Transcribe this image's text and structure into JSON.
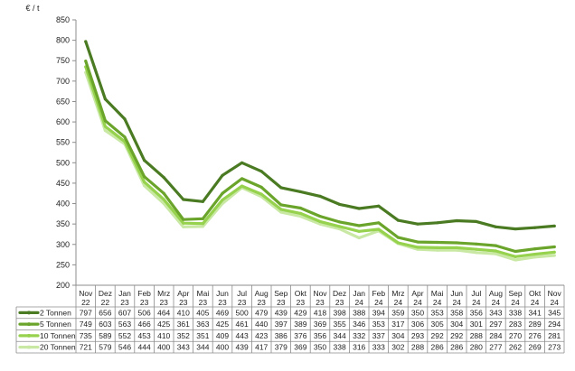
{
  "chart_data": {
    "type": "line",
    "unit_label": "€ / t",
    "ylim": [
      200,
      850
    ],
    "yticks": [
      200,
      250,
      300,
      350,
      400,
      450,
      500,
      550,
      600,
      650,
      700,
      750,
      800,
      850
    ],
    "grid": false,
    "legend": "data-table-left",
    "categories": [
      {
        "m": "Nov",
        "y": "22"
      },
      {
        "m": "Dez",
        "y": "22"
      },
      {
        "m": "Jan",
        "y": "23"
      },
      {
        "m": "Feb",
        "y": "23"
      },
      {
        "m": "Mrz",
        "y": "23"
      },
      {
        "m": "Apr",
        "y": "23"
      },
      {
        "m": "Mai",
        "y": "23"
      },
      {
        "m": "Jun",
        "y": "23"
      },
      {
        "m": "Jul",
        "y": "23"
      },
      {
        "m": "Aug",
        "y": "23"
      },
      {
        "m": "Sep",
        "y": "23"
      },
      {
        "m": "Okt",
        "y": "23"
      },
      {
        "m": "Nov",
        "y": "23"
      },
      {
        "m": "Dez",
        "y": "23"
      },
      {
        "m": "Jan",
        "y": "24"
      },
      {
        "m": "Feb",
        "y": "24"
      },
      {
        "m": "Mrz",
        "y": "24"
      },
      {
        "m": "Apr",
        "y": "24"
      },
      {
        "m": "Mai",
        "y": "24"
      },
      {
        "m": "Jun",
        "y": "24"
      },
      {
        "m": "Jul",
        "y": "24"
      },
      {
        "m": "Aug",
        "y": "24"
      },
      {
        "m": "Sep",
        "y": "24"
      },
      {
        "m": "Okt",
        "y": "24"
      },
      {
        "m": "Nov",
        "y": "24"
      }
    ],
    "series": [
      {
        "name": "2 Tonnen",
        "color": "#4a7a22",
        "values": [
          797,
          656,
          607,
          506,
          464,
          410,
          405,
          469,
          500,
          479,
          439,
          429,
          418,
          398,
          388,
          394,
          359,
          350,
          353,
          358,
          356,
          343,
          338,
          341,
          345
        ]
      },
      {
        "name": "5 Tonnen",
        "color": "#6aa42a",
        "values": [
          749,
          603,
          563,
          466,
          425,
          361,
          363,
          425,
          461,
          440,
          397,
          389,
          369,
          355,
          346,
          353,
          317,
          306,
          305,
          304,
          301,
          297,
          283,
          289,
          294
        ]
      },
      {
        "name": "10 Tonnen",
        "color": "#97d24e",
        "values": [
          735,
          589,
          552,
          453,
          410,
          352,
          351,
          409,
          443,
          423,
          386,
          376,
          356,
          344,
          332,
          337,
          304,
          293,
          292,
          292,
          288,
          284,
          270,
          276,
          281
        ]
      },
      {
        "name": "20 Tonnen",
        "color": "#c8e8a4",
        "values": [
          721,
          579,
          546,
          444,
          400,
          343,
          344,
          400,
          439,
          417,
          379,
          369,
          350,
          338,
          316,
          333,
          302,
          288,
          286,
          286,
          280,
          277,
          262,
          269,
          273
        ]
      }
    ]
  }
}
